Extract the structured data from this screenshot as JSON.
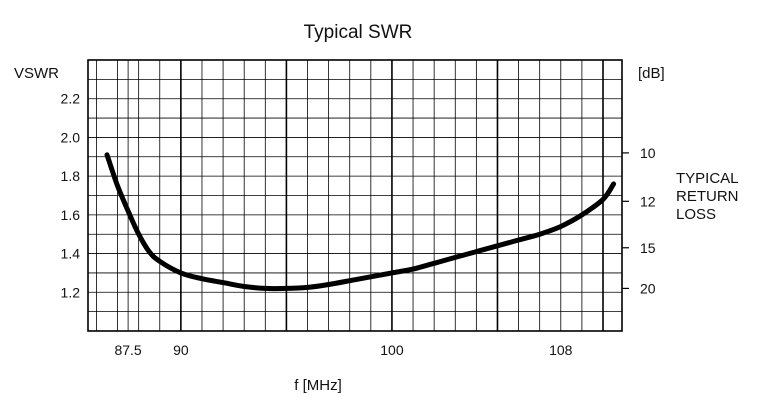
{
  "chart_data": {
    "type": "line",
    "title": "Typical SWR",
    "xlabel": "f [MHz]",
    "ylabel": "VSWR",
    "y2label": "[dB]",
    "y2title": [
      "TYPICAL",
      "RETURN",
      "LOSS"
    ],
    "xlim": [
      85.6,
      110.9
    ],
    "ylim": [
      1.0,
      2.4
    ],
    "x_ticks": [
      87.5,
      90,
      100,
      108
    ],
    "y_ticks": [
      1.2,
      1.4,
      1.6,
      1.8,
      2.0,
      2.2
    ],
    "y2_ticks": [
      {
        "label": "10",
        "vswr": 1.92
      },
      {
        "label": "12",
        "vswr": 1.67
      },
      {
        "label": "15",
        "vswr": 1.43
      },
      {
        "label": "20",
        "vswr": 1.22
      }
    ],
    "grid": true,
    "series": [
      {
        "color": "#000000",
        "x": [
          86.5,
          87.0,
          87.5,
          88.0,
          88.5,
          89.0,
          90.0,
          91.0,
          92.0,
          93.0,
          94.0,
          95.0,
          96.0,
          97.0,
          98.0,
          99.0,
          100.0,
          101.0,
          102.0,
          103.0,
          104.0,
          105.0,
          106.0,
          107.0,
          108.0,
          109.0,
          110.0,
          110.5
        ],
        "y": [
          1.91,
          1.75,
          1.62,
          1.5,
          1.41,
          1.36,
          1.3,
          1.27,
          1.25,
          1.23,
          1.22,
          1.22,
          1.225,
          1.24,
          1.26,
          1.28,
          1.3,
          1.32,
          1.35,
          1.38,
          1.41,
          1.44,
          1.47,
          1.5,
          1.54,
          1.6,
          1.68,
          1.76
        ]
      }
    ]
  }
}
